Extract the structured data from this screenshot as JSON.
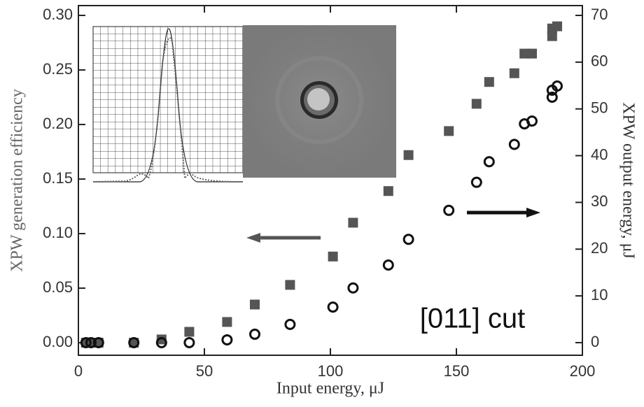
{
  "chart_data": {
    "type": "scatter",
    "x_label": "Input energy, μJ",
    "y_label": "XPW generation efficiency",
    "y2_label": "XPW output energy, μJ",
    "annotation": "[011] cut",
    "x": [
      3,
      5,
      8,
      22,
      33,
      44,
      59,
      70,
      84,
      101,
      109,
      123,
      131,
      147,
      158,
      163,
      173,
      177,
      180,
      188,
      188,
      190
    ],
    "series": [
      {
        "color": "#555555",
        "marker": "square",
        "values": [
          0,
          0,
          0,
          0,
          0.003,
          0.01,
          0.019,
          0.035,
          0.053,
          0.079,
          0.11,
          0.139,
          0.172,
          0.194,
          0.219,
          0.239,
          0.247,
          0.265,
          0.265,
          0.281,
          0.288,
          0.29
        ]
      },
      {
        "color": "#111111",
        "marker": "circle",
        "axis": "y2",
        "values": [
          0,
          0,
          0,
          0,
          0,
          0,
          0.6,
          1.8,
          3.9,
          7.6,
          11.7,
          16.6,
          22.1,
          28.3,
          34.3,
          38.7,
          42.4,
          46.8,
          47.4,
          52.5,
          54.0,
          54.9
        ]
      }
    ],
    "xlim": [
      0,
      200
    ],
    "xticks": [
      0,
      50,
      100,
      150,
      200
    ],
    "ylim": [
      -0.0115,
      0.309
    ],
    "yticks": [
      {
        "value": 0,
        "label": "0.00"
      },
      {
        "value": 0.05,
        "label": "0.05"
      },
      {
        "value": 0.1,
        "label": "0.10"
      },
      {
        "value": 0.15,
        "label": "0.15"
      },
      {
        "value": 0.2,
        "label": "0.20"
      },
      {
        "value": 0.25,
        "label": "0.25"
      },
      {
        "value": 0.3,
        "label": "0.30"
      }
    ],
    "y2lim": [
      -2.7,
      72.1
    ],
    "y2ticks": [
      0,
      10,
      20,
      30,
      40,
      50,
      60,
      70
    ]
  }
}
